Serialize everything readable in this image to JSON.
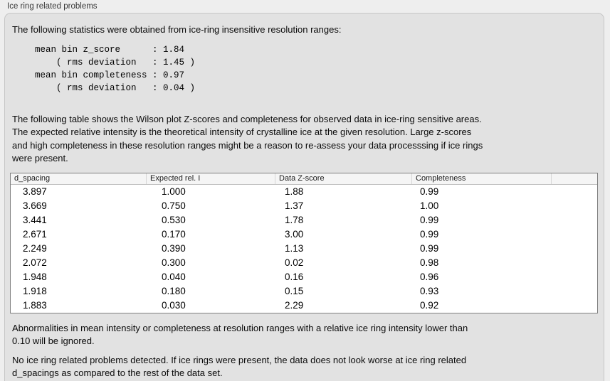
{
  "section": {
    "title": "Ice ring related problems"
  },
  "panel": {
    "intro_text": "The following statistics were obtained from ice-ring insensitive resolution ranges:",
    "stats_block": "mean bin z_score      : 1.84\n    ( rms deviation   : 1.45 )\nmean bin completeness : 0.97\n    ( rms deviation   : 0.04 )",
    "stats": {
      "mean_bin_z_score": "1.84",
      "z_score_rms_deviation": "1.45",
      "mean_bin_completeness": "0.97",
      "completeness_rms_deviation": "0.04"
    },
    "table_description": "The following table shows the Wilson plot Z-scores and completeness for observed data in ice-ring sensitive areas.\nThe expected relative intensity is the theoretical intensity of crystalline ice at the given resolution. Large z-scores\nand high completeness in these resolution ranges might be a reason to re-assess your data processsing if ice rings\nwere present.",
    "table": {
      "columns": [
        "d_spacing",
        "Expected rel. I",
        "Data Z-score",
        "Completeness"
      ],
      "rows": [
        [
          "3.897",
          "1.000",
          "1.88",
          "0.99"
        ],
        [
          "3.669",
          "0.750",
          "1.37",
          "1.00"
        ],
        [
          "3.441",
          "0.530",
          "1.78",
          "0.99"
        ],
        [
          "2.671",
          "0.170",
          "3.00",
          "0.99"
        ],
        [
          "2.249",
          "0.390",
          "1.13",
          "0.99"
        ],
        [
          "2.072",
          "0.300",
          "0.02",
          "0.98"
        ],
        [
          "1.948",
          "0.040",
          "0.16",
          "0.96"
        ],
        [
          "1.918",
          "0.180",
          "0.15",
          "0.93"
        ],
        [
          "1.883",
          "0.030",
          "2.29",
          "0.92"
        ]
      ]
    },
    "ignore_note": "Abnormalities in mean intensity or completeness at resolution ranges with a relative ice ring intensity lower than\n0.10 will be ignored.",
    "conclusion": "No ice ring related problems detected. If ice rings were present, the data does not look worse at ice ring related\nd_spacings as compared to the rest of the data set."
  },
  "colors": {
    "page_background": "#eeeeee",
    "panel_background": "#e2e2e2",
    "panel_border": "#c6c6c6",
    "table_border": "#7f7f7f",
    "table_header_background": "#f5f5f5",
    "text": "#0b0b0b"
  }
}
